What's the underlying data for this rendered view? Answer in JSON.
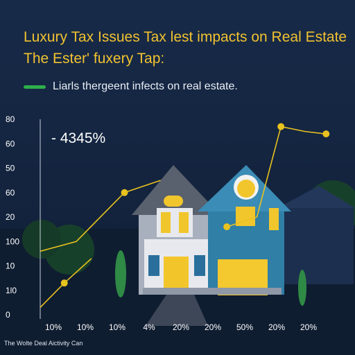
{
  "caption": "The Wolte Deal Aictivity Can",
  "colors": {
    "background": "#14233d",
    "line": "#e8c21e",
    "legend_swatch": "#2fae4c",
    "title": "#f2c230"
  },
  "chart_data": {
    "type": "line",
    "title": "Luxury Tax Issues Tax lest impacts on Real Estate The Ester' fuxery Tap:",
    "xlabel": "",
    "ylabel": "",
    "legend": {
      "position": "top-left",
      "entries": [
        "Liarls thergeent infects on real estate."
      ]
    },
    "annotation": "- 4345%",
    "grid": false,
    "x_tick_labels": [
      "10%",
      "10%",
      "10%",
      "4%",
      "20%",
      "20%",
      "50%",
      "20%",
      "20%"
    ],
    "y_tick_labels": [
      "80",
      "60",
      "50",
      "60",
      "20",
      "100",
      "10",
      "1l0",
      "0"
    ],
    "series": [
      {
        "name": "Liarls thergeent infects on real estate.",
        "segments": [
          {
            "x": [
              0,
              0.8,
              1.7
            ],
            "y": [
              0.3,
              1.3,
              2.3
            ],
            "markers": [
              0.8
            ]
          },
          {
            "x": [
              0,
              1.2,
              2.8,
              4.0
            ],
            "y": [
              2.6,
              3.0,
              5.0,
              5.5
            ],
            "markers": [
              2.8
            ]
          },
          {
            "x": [
              6.2,
              7.2,
              8.0,
              8.8,
              9.5
            ],
            "y": [
              3.6,
              4.0,
              7.7,
              7.5,
              7.4
            ],
            "markers": [
              6.2,
              8.0,
              9.5
            ]
          }
        ]
      }
    ]
  }
}
